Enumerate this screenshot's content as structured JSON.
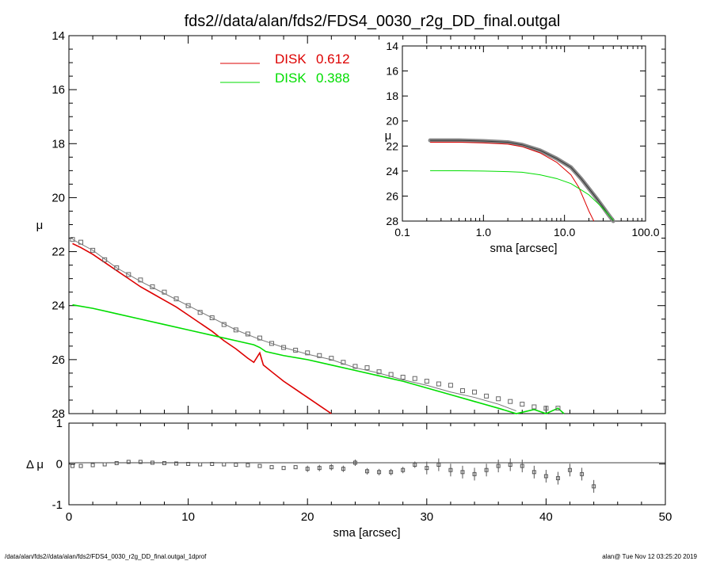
{
  "chart_data": [
    {
      "type": "line",
      "title": "fds2//data/alan/fds2/FDS4_0030_r2g_DD_final.outgal",
      "xlabel": "",
      "ylabel": "μ",
      "xlim": [
        0,
        50
      ],
      "ylim": [
        28,
        14
      ],
      "y_inverted": true,
      "xticks": [
        "0",
        "10",
        "20",
        "30",
        "40",
        "50"
      ],
      "yticks": [
        "14",
        "16",
        "18",
        "20",
        "22",
        "24",
        "26",
        "28"
      ],
      "legend_position": "top-center",
      "series": [
        {
          "name": "DISK",
          "weight": "0.612",
          "color": "#dd0000",
          "style": "line",
          "x": [
            0.3,
            1,
            2,
            3,
            4,
            5,
            6,
            7,
            8,
            9,
            10,
            11,
            12,
            13,
            14,
            15,
            15.5,
            16,
            16.3,
            17,
            18,
            19,
            20,
            21,
            22
          ],
          "y": [
            21.7,
            21.85,
            22.1,
            22.4,
            22.7,
            23.0,
            23.3,
            23.55,
            23.8,
            24.05,
            24.35,
            24.65,
            24.95,
            25.3,
            25.6,
            25.95,
            26.1,
            25.75,
            26.2,
            26.45,
            26.8,
            27.1,
            27.4,
            27.7,
            28.0
          ]
        },
        {
          "name": "DISK",
          "weight": "0.388",
          "color": "#00dd00",
          "style": "line",
          "x": [
            0.3,
            2,
            4,
            6,
            8,
            10,
            12,
            14,
            15.5,
            16,
            16.5,
            18,
            20,
            22,
            24,
            26,
            28,
            30,
            32,
            34,
            36,
            37.5,
            39,
            40,
            41,
            41.5
          ],
          "y": [
            23.97,
            24.1,
            24.3,
            24.5,
            24.7,
            24.9,
            25.1,
            25.3,
            25.45,
            25.55,
            25.7,
            25.85,
            26.0,
            26.2,
            26.4,
            26.6,
            26.8,
            27.05,
            27.3,
            27.55,
            27.8,
            28.0,
            27.85,
            28.0,
            27.8,
            28.0
          ]
        },
        {
          "name": "data",
          "color": "#666666",
          "style": "markers",
          "x": [
            0.3,
            1,
            2,
            3,
            4,
            5,
            6,
            7,
            8,
            9,
            10,
            11,
            12,
            13,
            14,
            15,
            16,
            17,
            18,
            19,
            20,
            21,
            22,
            23,
            24,
            25,
            26,
            27,
            28,
            29,
            30,
            31,
            32,
            33,
            34,
            35,
            36,
            37,
            38,
            39,
            40,
            41
          ],
          "y": [
            21.55,
            21.65,
            21.95,
            22.3,
            22.6,
            22.85,
            23.05,
            23.3,
            23.5,
            23.75,
            24.0,
            24.25,
            24.45,
            24.7,
            24.9,
            25.05,
            25.2,
            25.4,
            25.55,
            25.65,
            25.75,
            25.85,
            25.95,
            26.1,
            26.25,
            26.3,
            26.45,
            26.55,
            26.65,
            26.7,
            26.8,
            26.9,
            26.95,
            27.15,
            27.2,
            27.35,
            27.45,
            27.55,
            27.65,
            27.75,
            27.8,
            27.8
          ]
        },
        {
          "name": "model",
          "color": "#777777",
          "style": "line",
          "x": [
            0.3,
            2,
            4,
            6,
            8,
            10,
            12,
            14,
            16,
            18,
            20,
            22,
            24,
            26,
            28,
            30,
            32,
            34,
            36,
            37.5
          ],
          "y": [
            21.55,
            21.95,
            22.6,
            23.1,
            23.55,
            24.0,
            24.45,
            24.9,
            25.25,
            25.55,
            25.8,
            26.0,
            26.3,
            26.5,
            26.75,
            26.95,
            27.2,
            27.4,
            27.65,
            27.9
          ]
        }
      ]
    },
    {
      "type": "scatter",
      "xlabel": "sma [arcsec]",
      "ylabel": "Δ μ",
      "xlim": [
        0,
        50
      ],
      "ylim": [
        -1,
        1
      ],
      "xticks": [
        "0",
        "10",
        "20",
        "30",
        "40",
        "50"
      ],
      "yticks": [
        "1",
        "0",
        "-1"
      ],
      "series": [
        {
          "name": "residual",
          "x": [
            0.3,
            1,
            2,
            3,
            4,
            5,
            6,
            7,
            8,
            9,
            10,
            11,
            12,
            13,
            14,
            15,
            16,
            17,
            18,
            19,
            20,
            21,
            22,
            23,
            24,
            25,
            26,
            27,
            28,
            29,
            30,
            31,
            32,
            33,
            34,
            35,
            36,
            37,
            38,
            39,
            40,
            41,
            42,
            43,
            44
          ],
          "y": [
            -0.05,
            -0.05,
            -0.03,
            -0.01,
            0.02,
            0.05,
            0.05,
            0.03,
            0.02,
            0.01,
            0.0,
            -0.01,
            0.0,
            -0.01,
            -0.02,
            -0.03,
            -0.05,
            -0.08,
            -0.1,
            -0.08,
            -0.12,
            -0.1,
            -0.08,
            -0.12,
            0.03,
            -0.18,
            -0.2,
            -0.2,
            -0.15,
            -0.02,
            -0.1,
            -0.02,
            -0.15,
            -0.2,
            -0.25,
            -0.15,
            -0.05,
            -0.02,
            -0.05,
            -0.2,
            -0.3,
            -0.35,
            -0.15,
            -0.25,
            -0.55
          ]
        }
      ]
    },
    {
      "type": "line",
      "inset": true,
      "xlabel": "sma [arcsec]",
      "ylabel": "μ",
      "xscale": "log",
      "xlim": [
        0.1,
        100
      ],
      "ylim": [
        28,
        14
      ],
      "xticks": [
        "0.1",
        "1.0",
        "10.0",
        "100.0"
      ],
      "yticks": [
        "14",
        "16",
        "18",
        "20",
        "22",
        "24",
        "26",
        "28"
      ],
      "series": [
        {
          "name": "data",
          "color": "#666666",
          "x": [
            0.22,
            0.5,
            1,
            2,
            3,
            5,
            8,
            12,
            16,
            20,
            25,
            30,
            35,
            40
          ],
          "y": [
            21.55,
            21.55,
            21.6,
            21.7,
            21.9,
            22.35,
            23.0,
            23.7,
            24.6,
            25.4,
            26.2,
            26.9,
            27.5,
            28.0
          ]
        },
        {
          "name": "DISK 0.612",
          "color": "#dd0000",
          "x": [
            0.22,
            0.5,
            1,
            2,
            3,
            5,
            8,
            12,
            15,
            18,
            20,
            23
          ],
          "y": [
            21.7,
            21.7,
            21.75,
            21.85,
            22.05,
            22.55,
            23.3,
            24.3,
            25.3,
            26.5,
            27.2,
            28.0
          ]
        },
        {
          "name": "DISK 0.388",
          "color": "#00dd00",
          "x": [
            0.22,
            0.5,
            1,
            2,
            3,
            5,
            8,
            12,
            16,
            20,
            25,
            30,
            35,
            40
          ],
          "y": [
            23.97,
            23.98,
            24.0,
            24.05,
            24.1,
            24.3,
            24.6,
            25.0,
            25.5,
            25.9,
            26.5,
            27.0,
            27.5,
            27.95
          ]
        }
      ]
    }
  ],
  "legend": [
    {
      "name": "DISK",
      "value": "0.612",
      "color": "#dd0000"
    },
    {
      "name": "DISK",
      "value": "0.388",
      "color": "#00dd00"
    }
  ],
  "footer": {
    "left": "/data/alan/fds2//data/alan/fds2/FDS4_0030_r2g_DD_final.outgal_1dprof",
    "right": "alan@  Tue Nov 12 03:25:20 2019"
  }
}
